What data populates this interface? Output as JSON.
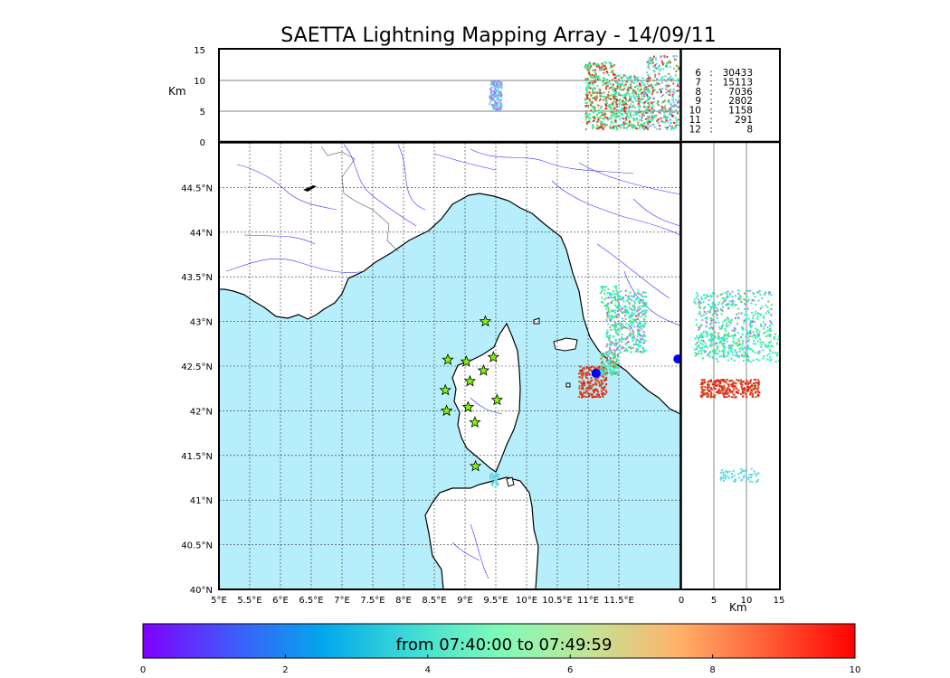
{
  "chart_data": {
    "type": "scatter",
    "title": "SAETTA Lightning Mapping Array - 14/09/11",
    "map": {
      "xlim": [
        5,
        12.5
      ],
      "ylim": [
        40,
        45
      ],
      "x_ticks": [
        {
          "v": 5,
          "label": "5°E"
        },
        {
          "v": 5.5,
          "label": "5.5°E"
        },
        {
          "v": 6,
          "label": "6°E"
        },
        {
          "v": 6.5,
          "label": "6.5°E"
        },
        {
          "v": 7,
          "label": "7°E"
        },
        {
          "v": 7.5,
          "label": "7.5°E"
        },
        {
          "v": 8,
          "label": "8°E"
        },
        {
          "v": 8.5,
          "label": "8.5°E"
        },
        {
          "v": 9,
          "label": "9°E"
        },
        {
          "v": 9.5,
          "label": "9.5°E"
        },
        {
          "v": 10,
          "label": "10°E"
        },
        {
          "v": 10.5,
          "label": "10.5°E"
        },
        {
          "v": 11,
          "label": "11°E"
        },
        {
          "v": 11.5,
          "label": "11.5°E"
        }
      ],
      "y_ticks": [
        {
          "v": 40,
          "label": "40°N"
        },
        {
          "v": 40.5,
          "label": "40.5°N"
        },
        {
          "v": 41,
          "label": "41°N"
        },
        {
          "v": 41.5,
          "label": "41.5°N"
        },
        {
          "v": 42,
          "label": "42°N"
        },
        {
          "v": 42.5,
          "label": "42.5°N"
        },
        {
          "v": 43,
          "label": "43°N"
        },
        {
          "v": 43.5,
          "label": "43.5°N"
        },
        {
          "v": 44,
          "label": "44°N"
        },
        {
          "v": 44.5,
          "label": "44.5°N"
        }
      ],
      "grid": true,
      "sea_color": "#b6eefc",
      "stations": [
        [
          9.33,
          43.0
        ],
        [
          8.72,
          42.57
        ],
        [
          9.02,
          42.55
        ],
        [
          9.46,
          42.6
        ],
        [
          9.3,
          42.45
        ],
        [
          9.08,
          42.33
        ],
        [
          8.68,
          42.23
        ],
        [
          8.7,
          42.0
        ],
        [
          9.05,
          42.04
        ],
        [
          9.52,
          42.12
        ],
        [
          9.16,
          41.87
        ],
        [
          9.17,
          41.38
        ]
      ],
      "station_color": "#7cfc00",
      "clusters": [
        {
          "lon": [
            11.3,
            11.95
          ],
          "lat": [
            42.65,
            43.35
          ],
          "t_range": [
            1,
            8
          ],
          "n": 420
        },
        {
          "lon": [
            10.85,
            11.3
          ],
          "lat": [
            42.15,
            42.5
          ],
          "t_range": [
            8.5,
            10
          ],
          "n": 230
        },
        {
          "lon": [
            11.2,
            11.5
          ],
          "lat": [
            42.4,
            42.65
          ],
          "t_range": [
            2,
            9
          ],
          "n": 120
        },
        {
          "lon": [
            11.2,
            11.5
          ],
          "lat": [
            43.1,
            43.4
          ],
          "t_range": [
            5,
            7
          ],
          "n": 40
        },
        {
          "lon": [
            9.4,
            9.55
          ],
          "lat": [
            41.15,
            41.3
          ],
          "t_range": [
            2.8,
            3.6
          ],
          "n": 40
        }
      ],
      "big_dots": [
        [
          11.13,
          42.42
        ],
        [
          12.46,
          42.58
        ]
      ]
    },
    "top_panel": {
      "ylabel": "Km",
      "ylim": [
        0,
        15
      ],
      "y_ticks": [
        0,
        5,
        10,
        15
      ],
      "hlines": [
        5,
        10
      ],
      "clusters": [
        {
          "lon": [
            9.4,
            9.6
          ],
          "alt": [
            5,
            10
          ],
          "t_range": [
            1,
            4
          ],
          "n": 150
        },
        {
          "lon": [
            11.95,
            12.5
          ],
          "alt": [
            2,
            14
          ],
          "t_range": [
            1,
            10
          ],
          "n": 320
        },
        {
          "lon": [
            11.45,
            12.0
          ],
          "alt": [
            2,
            11
          ],
          "t_range": [
            2,
            10
          ],
          "n": 380
        },
        {
          "lon": [
            10.95,
            11.45
          ],
          "alt": [
            2,
            13
          ],
          "t_range": [
            5,
            10
          ],
          "n": 380
        }
      ]
    },
    "side_panel": {
      "xlabel": "Km",
      "xlim": [
        0,
        15
      ],
      "x_ticks": [
        0,
        5,
        10,
        15
      ],
      "vlines": [
        5,
        10
      ],
      "clusters": [
        {
          "alt": [
            2,
            14
          ],
          "lat": [
            42.6,
            43.35
          ],
          "t_range": [
            1,
            8
          ],
          "n": 450
        },
        {
          "alt": [
            2,
            15
          ],
          "lat": [
            42.55,
            42.9
          ],
          "t_range": [
            3,
            7
          ],
          "n": 150
        },
        {
          "alt": [
            3,
            12
          ],
          "lat": [
            42.15,
            42.35
          ],
          "t_range": [
            8.5,
            10
          ],
          "n": 300
        },
        {
          "alt": [
            6,
            12
          ],
          "lat": [
            41.2,
            41.35
          ],
          "t_range": [
            2.8,
            3.6
          ],
          "n": 60
        }
      ]
    },
    "counts": [
      {
        "station": "6",
        "sep": ":",
        "count": "30433",
        "color": "#000000"
      },
      {
        "station": "7",
        "sep": ":",
        "count": "15113",
        "color": "#ff0000"
      },
      {
        "station": "8",
        "sep": ":",
        "count": "7036",
        "color": "#000000"
      },
      {
        "station": "9",
        "sep": ":",
        "count": "2802",
        "color": "#000000"
      },
      {
        "station": "10",
        "sep": ":",
        "count": "1158",
        "color": "#000000"
      },
      {
        "station": "11",
        "sep": ":",
        "count": "291",
        "color": "#000000"
      },
      {
        "station": "12",
        "sep": ":",
        "count": "8",
        "color": "#000000"
      }
    ],
    "colorbar": {
      "title": "from 07:40:00 to 07:49:59",
      "range": [
        0,
        10
      ],
      "ticks": [
        0,
        2,
        4,
        6,
        8,
        10
      ],
      "colormap": "rainbow"
    }
  }
}
